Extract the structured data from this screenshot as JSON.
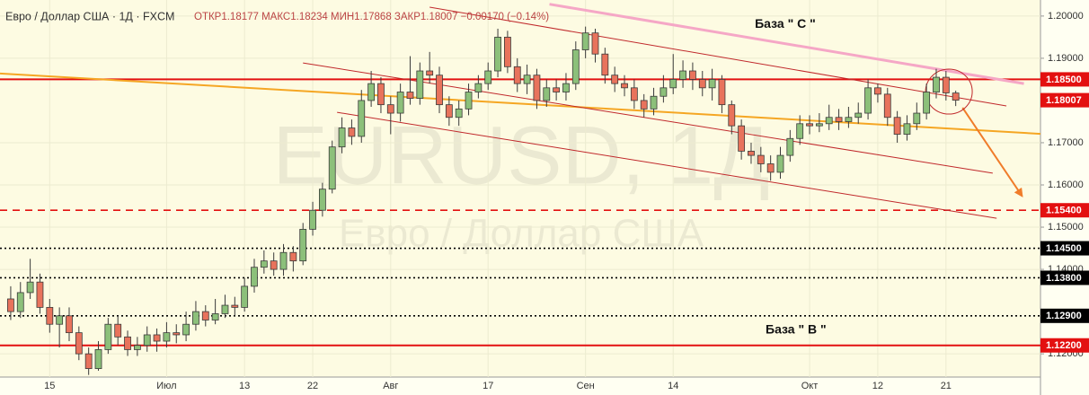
{
  "chart_data": {
    "type": "candlestick",
    "title": "Евро / Доллар США · 1Д · FXCM",
    "subtitle": "ОТКР1.18177 МАКС1.18234 МИН1.17868 ЗАКР1.18007 −0.00170 (−0.14%)",
    "watermark": "EURUSD, 1Д",
    "watermark_subtitle": "Евро / Доллар США",
    "annotations": [
      {
        "text": "База \" C \"",
        "x": 79.5,
        "y": 1.198
      },
      {
        "text": "База \" B \"",
        "x": 80.6,
        "y": 1.1256
      }
    ],
    "categories": [
      null,
      null,
      null,
      null,
      "15",
      null,
      null,
      null,
      null,
      null,
      null,
      null,
      null,
      null,
      null,
      null,
      "Июл",
      null,
      null,
      null,
      null,
      null,
      null,
      null,
      "13",
      null,
      null,
      null,
      null,
      null,
      null,
      "22",
      null,
      null,
      null,
      null,
      null,
      null,
      null,
      "Авг",
      null,
      null,
      null,
      null,
      null,
      null,
      null,
      null,
      null,
      "17",
      null,
      null,
      null,
      null,
      null,
      null,
      null,
      null,
      null,
      "Сен",
      null,
      null,
      null,
      null,
      null,
      null,
      null,
      null,
      "14",
      null,
      null,
      null,
      null,
      null,
      null,
      null,
      null,
      null,
      null,
      null,
      null,
      null,
      "Окт",
      null,
      null,
      null,
      null,
      null,
      null,
      "12",
      null,
      null,
      null,
      null,
      null,
      null,
      "21",
      null
    ],
    "open": [
      1.133,
      1.13,
      1.1345,
      1.137,
      1.131,
      1.127,
      1.129,
      1.125,
      1.12,
      1.1165,
      1.121,
      1.127,
      1.124,
      1.121,
      1.122,
      1.1245,
      1.123,
      1.125,
      1.1245,
      1.127,
      1.13,
      1.128,
      1.1295,
      1.1315,
      1.131,
      1.136,
      1.1405,
      1.142,
      1.14,
      1.144,
      1.142,
      1.1495,
      1.154,
      1.159,
      1.169,
      1.1735,
      1.1715,
      1.18,
      1.184,
      1.179,
      1.177,
      1.182,
      1.1805,
      1.187,
      1.186,
      1.179,
      1.176,
      1.178,
      1.182,
      1.184,
      1.187,
      1.195,
      1.188,
      1.184,
      1.186,
      1.18,
      1.183,
      1.182,
      1.184,
      1.192,
      1.196,
      1.191,
      1.186,
      1.184,
      1.183,
      1.18,
      1.178,
      1.181,
      1.183,
      1.185,
      1.187,
      1.185,
      1.183,
      1.185,
      1.179,
      1.174,
      1.168,
      1.167,
      1.165,
      1.163,
      1.167,
      1.171,
      1.1745,
      1.174,
      1.1745,
      1.176,
      1.175,
      1.176,
      1.177,
      1.183,
      1.1815,
      1.176,
      1.172,
      1.1745,
      1.177,
      1.182,
      1.1855,
      1.18177
    ],
    "high": [
      1.136,
      1.137,
      1.1425,
      1.139,
      1.133,
      1.131,
      1.131,
      1.1265,
      1.1215,
      1.123,
      1.1285,
      1.129,
      1.1255,
      1.124,
      1.1265,
      1.126,
      1.1275,
      1.127,
      1.13,
      1.1325,
      1.1315,
      1.133,
      1.134,
      1.1335,
      1.138,
      1.1425,
      1.1445,
      1.144,
      1.146,
      1.1455,
      1.151,
      1.156,
      1.1605,
      1.1705,
      1.176,
      1.1755,
      1.1825,
      1.187,
      1.1855,
      1.181,
      1.184,
      1.1905,
      1.189,
      1.1915,
      1.188,
      1.181,
      1.18,
      1.184,
      1.186,
      1.189,
      1.197,
      1.1965,
      1.19,
      1.1885,
      1.1875,
      1.185,
      1.185,
      1.1865,
      1.194,
      1.1975,
      1.197,
      1.1925,
      1.188,
      1.186,
      1.185,
      1.1815,
      1.183,
      1.186,
      1.191,
      1.1895,
      1.189,
      1.187,
      1.1875,
      1.186,
      1.18,
      1.1755,
      1.17,
      1.169,
      1.167,
      1.169,
      1.173,
      1.1765,
      1.1765,
      1.177,
      1.179,
      1.178,
      1.1785,
      1.1795,
      1.185,
      1.184,
      1.183,
      1.1775,
      1.1765,
      1.1795,
      1.184,
      1.1875,
      1.187,
      1.18234
    ],
    "low": [
      1.128,
      1.1285,
      1.133,
      1.1295,
      1.125,
      1.1215,
      1.123,
      1.1185,
      1.115,
      1.116,
      1.12,
      1.122,
      1.1195,
      1.1195,
      1.1205,
      1.1205,
      1.1215,
      1.1225,
      1.123,
      1.1255,
      1.1265,
      1.127,
      1.1285,
      1.129,
      1.13,
      1.1345,
      1.139,
      1.1385,
      1.1385,
      1.1395,
      1.141,
      1.148,
      1.1525,
      1.158,
      1.1675,
      1.1695,
      1.17,
      1.1785,
      1.177,
      1.172,
      1.175,
      1.179,
      1.179,
      1.184,
      1.177,
      1.174,
      1.174,
      1.1765,
      1.1805,
      1.1825,
      1.1855,
      1.1865,
      1.182,
      1.1815,
      1.178,
      1.1785,
      1.18,
      1.18,
      1.1825,
      1.19,
      1.189,
      1.184,
      1.182,
      1.181,
      1.178,
      1.176,
      1.1765,
      1.1795,
      1.1815,
      1.183,
      1.1825,
      1.181,
      1.18,
      1.177,
      1.172,
      1.166,
      1.165,
      1.163,
      1.161,
      1.1615,
      1.1655,
      1.1695,
      1.172,
      1.1725,
      1.173,
      1.173,
      1.1735,
      1.1745,
      1.1755,
      1.1795,
      1.174,
      1.17,
      1.1705,
      1.173,
      1.1755,
      1.1805,
      1.18,
      1.17868
    ],
    "close": [
      1.13,
      1.1345,
      1.137,
      1.131,
      1.127,
      1.129,
      1.125,
      1.12,
      1.1165,
      1.121,
      1.127,
      1.124,
      1.121,
      1.122,
      1.1245,
      1.123,
      1.125,
      1.1245,
      1.127,
      1.13,
      1.128,
      1.1295,
      1.1315,
      1.131,
      1.136,
      1.1405,
      1.142,
      1.14,
      1.144,
      1.142,
      1.1495,
      1.154,
      1.159,
      1.169,
      1.1735,
      1.1715,
      1.18,
      1.184,
      1.179,
      1.177,
      1.182,
      1.1805,
      1.187,
      1.186,
      1.179,
      1.176,
      1.178,
      1.182,
      1.184,
      1.187,
      1.195,
      1.188,
      1.184,
      1.186,
      1.18,
      1.183,
      1.182,
      1.184,
      1.192,
      1.196,
      1.191,
      1.186,
      1.184,
      1.183,
      1.18,
      1.178,
      1.181,
      1.183,
      1.185,
      1.187,
      1.185,
      1.183,
      1.185,
      1.179,
      1.174,
      1.168,
      1.167,
      1.165,
      1.163,
      1.167,
      1.171,
      1.1745,
      1.174,
      1.1745,
      1.176,
      1.175,
      1.176,
      1.177,
      1.183,
      1.1815,
      1.176,
      1.172,
      1.1745,
      1.177,
      1.182,
      1.1855,
      1.1818,
      1.18007
    ],
    "up_color": "#8cc07a",
    "down_color": "#e8735c",
    "xlim": [
      -1.1,
      105.7
    ],
    "ylim": [
      1.1145,
      1.2038
    ],
    "yticks": [
      {
        "value": 1.12,
        "label": "1.12000"
      },
      {
        "value": 1.14,
        "label": "1.14000"
      },
      {
        "value": 1.15,
        "label": "1.15000"
      },
      {
        "value": 1.16,
        "label": "1.16000"
      },
      {
        "value": 1.17,
        "label": "1.17000"
      },
      {
        "value": 1.19,
        "label": "1.19000"
      },
      {
        "value": 1.2,
        "label": "1.20000"
      }
    ],
    "grid": true,
    "levels": [
      {
        "value": 1.185,
        "label": "1.18500",
        "color": "#e31010",
        "style": "solid"
      },
      {
        "value": 1.154,
        "label": "1.15400",
        "color": "#e31010",
        "style": "dashed"
      },
      {
        "value": 1.145,
        "label": "1.14500",
        "color": "#000000",
        "style": "dotted"
      },
      {
        "value": 1.138,
        "label": "1.13800",
        "color": "#000000",
        "style": "dotted"
      },
      {
        "value": 1.129,
        "label": "1.12900",
        "color": "#000000",
        "style": "dotted"
      },
      {
        "value": 1.122,
        "label": "1.12200",
        "color": "#e31010",
        "style": "solid"
      }
    ],
    "last_price": {
      "value": 1.18007,
      "label": "1.18007",
      "color": "#e31010"
    },
    "drawings": [
      {
        "kind": "line",
        "color": "#f5a7c6",
        "width": 3,
        "x": [
          55.3,
          104.0
        ],
        "y": [
          1.2028,
          1.184
        ]
      },
      {
        "kind": "line",
        "color": "#f5a623",
        "width": 2,
        "x": [
          -1.1,
          105.7
        ],
        "y": [
          1.1864,
          1.1721
        ]
      },
      {
        "kind": "line",
        "color": "#c0282b",
        "width": 1,
        "x": [
          43.0,
          102.2
        ],
        "y": [
          1.2021,
          1.1787
        ]
      },
      {
        "kind": "line",
        "color": "#c0282b",
        "width": 1,
        "x": [
          30.0,
          100.8
        ],
        "y": [
          1.1889,
          1.1628
        ]
      },
      {
        "kind": "line",
        "color": "#c0282b",
        "width": 1,
        "x": [
          33.5,
          101.2
        ],
        "y": [
          1.1772,
          1.1521
        ]
      },
      {
        "kind": "arrow",
        "color": "#f07c2a",
        "width": 2,
        "x": [
          97.7,
          103.8
        ],
        "y": [
          1.1783,
          1.1574
        ]
      },
      {
        "kind": "circle",
        "color": "#c0282b",
        "width": 1,
        "x": [
          96.3
        ],
        "y": [
          1.1821
        ]
      }
    ]
  }
}
